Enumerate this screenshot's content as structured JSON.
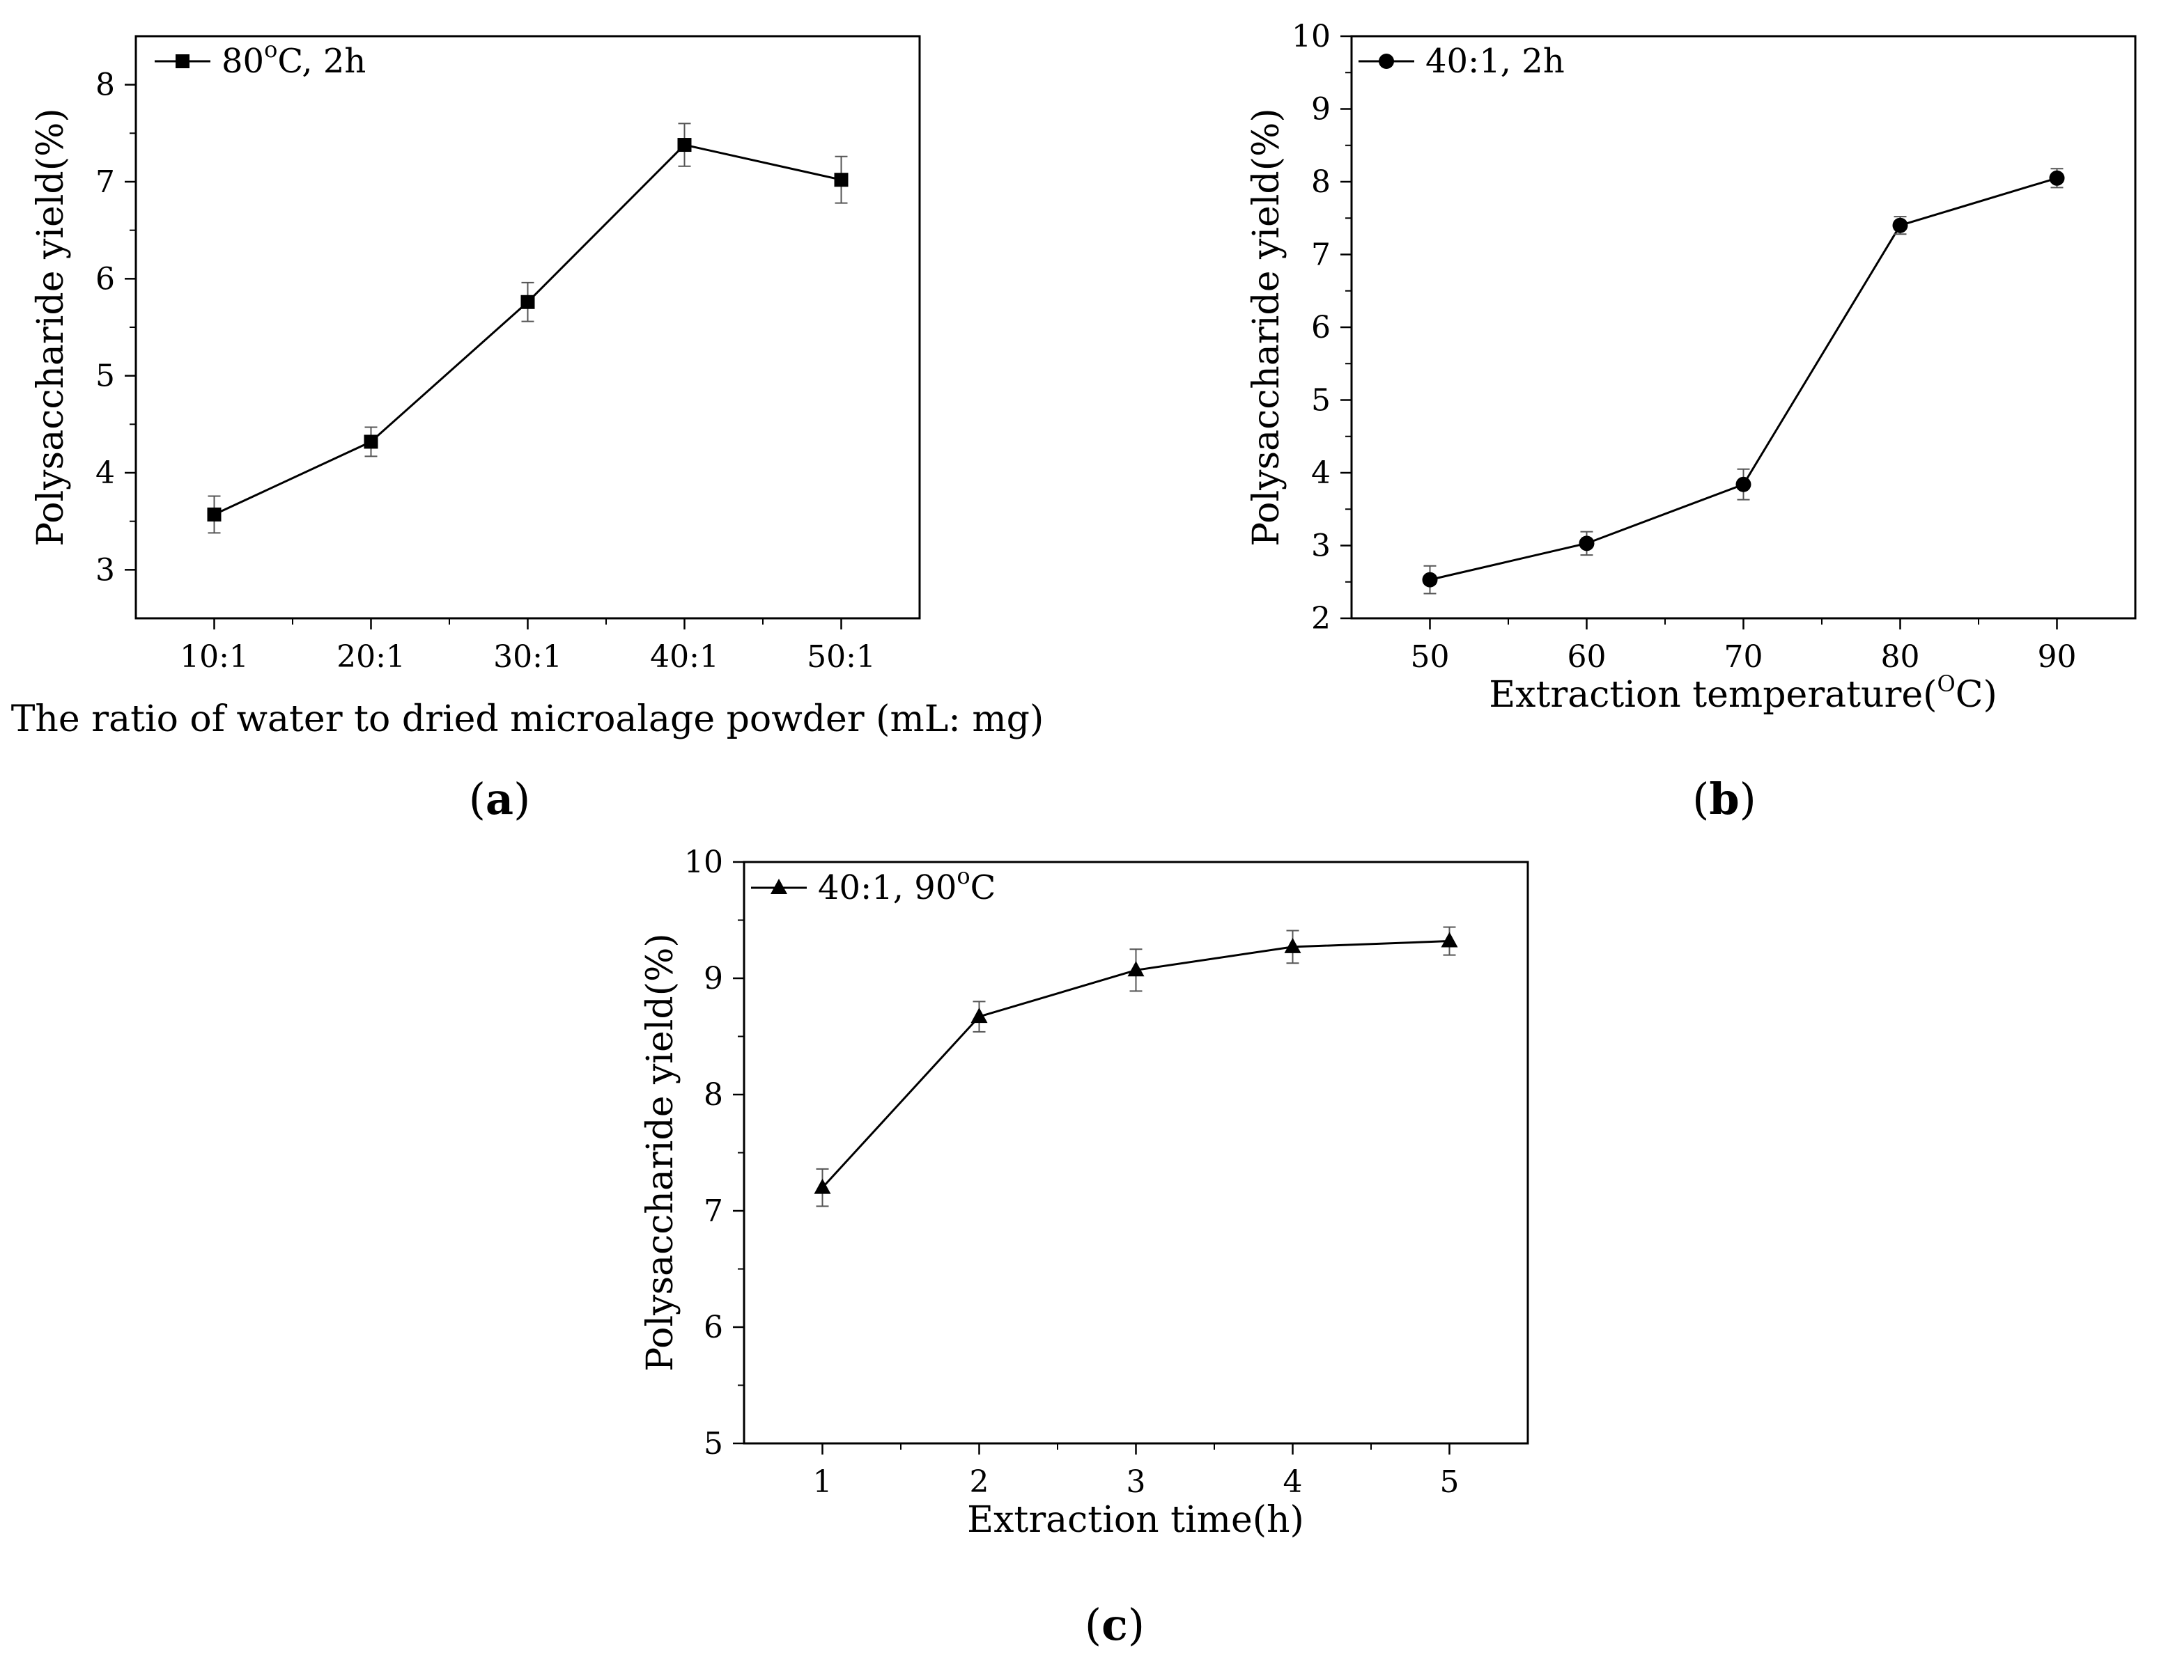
{
  "figure": {
    "panels": [
      {
        "id": "a",
        "label": "a"
      },
      {
        "id": "b",
        "label": "b"
      },
      {
        "id": "c",
        "label": "c"
      }
    ]
  },
  "chart_data": [
    {
      "id": "a",
      "type": "line",
      "title": "",
      "xlabel": "The ratio of water to dried microalage  powder (mL: mg)",
      "ylabel": "Polysaccharide yield(%)",
      "categories": [
        "10:1",
        "20:1",
        "30:1",
        "40:1",
        "50:1"
      ],
      "ylim": [
        2.5,
        8.5
      ],
      "yticks": [
        3,
        4,
        5,
        6,
        7,
        8
      ],
      "legend": "top-left",
      "marker": "square",
      "series": [
        {
          "name": "80°C, 2h",
          "name_parts": [
            "80",
            "o",
            "C, 2h"
          ],
          "values": [
            3.57,
            4.32,
            5.76,
            7.38,
            7.02
          ],
          "errors": [
            0.19,
            0.15,
            0.2,
            0.22,
            0.24
          ]
        }
      ]
    },
    {
      "id": "b",
      "type": "line",
      "title": "",
      "xlabel": "Extraction temperature(°C)",
      "xlabel_parts": [
        "Extraction temperature(",
        "O",
        "C)"
      ],
      "ylabel": "Polysaccharide yield(%)",
      "x": [
        50,
        60,
        70,
        80,
        90
      ],
      "xlim": [
        45,
        95
      ],
      "xticks": [
        50,
        60,
        70,
        80,
        90
      ],
      "ylim": [
        2,
        10
      ],
      "yticks": [
        2,
        3,
        4,
        5,
        6,
        7,
        8,
        9,
        10
      ],
      "legend": "top-left",
      "marker": "circle",
      "series": [
        {
          "name": "40:1, 2h",
          "values": [
            2.53,
            3.03,
            3.84,
            7.4,
            8.05
          ],
          "errors": [
            0.19,
            0.16,
            0.21,
            0.12,
            0.13
          ]
        }
      ]
    },
    {
      "id": "c",
      "type": "line",
      "title": "",
      "xlabel": "Extraction time(h)",
      "ylabel": "Polysaccharide yield(%)",
      "x": [
        1,
        2,
        3,
        4,
        5
      ],
      "xlim": [
        0.5,
        5.5
      ],
      "xticks": [
        1,
        2,
        3,
        4,
        5
      ],
      "ylim": [
        5,
        10
      ],
      "yticks": [
        5,
        6,
        7,
        8,
        9,
        10
      ],
      "legend": "top-left",
      "marker": "triangle",
      "series": [
        {
          "name": "40:1, 90°C",
          "name_parts": [
            "40:1, 90",
            "o",
            "C"
          ],
          "values": [
            7.2,
            8.67,
            9.07,
            9.27,
            9.32
          ],
          "errors": [
            0.16,
            0.13,
            0.18,
            0.14,
            0.12
          ]
        }
      ]
    }
  ]
}
